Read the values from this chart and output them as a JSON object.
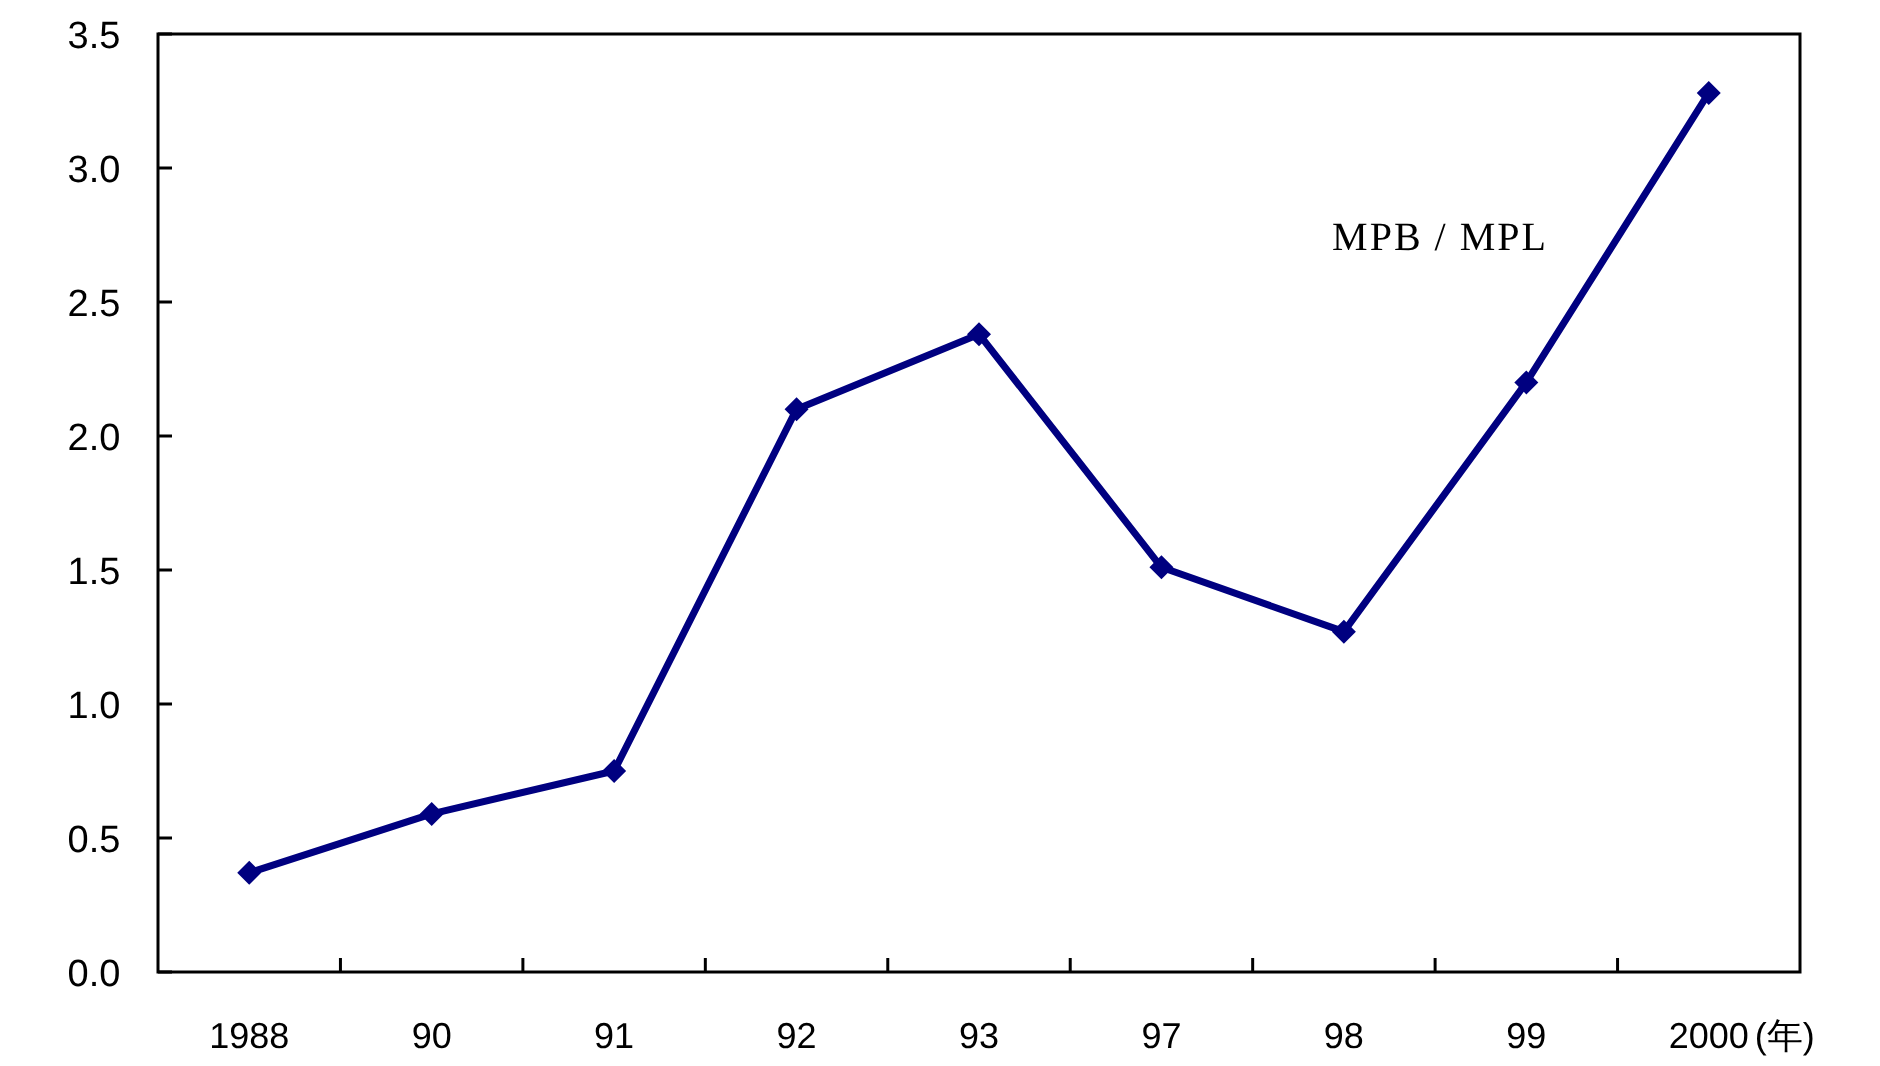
{
  "chart_data": {
    "type": "line",
    "xlabel": "(年)",
    "annotations": [
      "MPB / MPL"
    ],
    "categories": [
      "1988",
      "90",
      "91",
      "92",
      "93",
      "97",
      "98",
      "99",
      "2000"
    ],
    "series": [
      {
        "color": "#000080",
        "values": [
          0.37,
          0.59,
          0.75,
          2.1,
          2.38,
          1.51,
          1.27,
          2.2,
          3.28
        ]
      }
    ],
    "ylim": [
      0,
      3.5
    ],
    "yticks": [
      {
        "value": 0,
        "label": "0.0"
      },
      {
        "value": 0.5,
        "label": "0.5"
      },
      {
        "value": 1,
        "label": "1.0"
      },
      {
        "value": 1.5,
        "label": "1.5"
      },
      {
        "value": 2,
        "label": "2.0"
      },
      {
        "value": 2.5,
        "label": "2.5"
      },
      {
        "value": 3,
        "label": "3.0"
      },
      {
        "value": 3.5,
        "label": "3.5"
      }
    ],
    "marker": "diamond",
    "line_style": "solid",
    "grid": false
  }
}
